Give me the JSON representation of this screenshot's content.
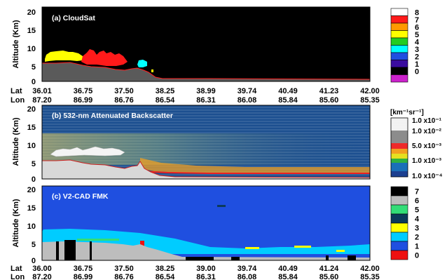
{
  "figure": {
    "panels": [
      {
        "title": "(a) CloudSat",
        "ylabel": "Altitude (Km)",
        "yticks": [
          "20",
          "15",
          "10",
          "5",
          "0"
        ],
        "bottom_axis": {
          "lat_label": "Lat",
          "lon_label": "Lon",
          "lat": [
            "36.01",
            "36.75",
            "37.50",
            "38.25",
            "38.99",
            "39.74",
            "40.49",
            "41.23",
            "42.00"
          ],
          "lon": [
            "87.20",
            "86.99",
            "86.76",
            "86.54",
            "86.31",
            "86.08",
            "85.84",
            "85.60",
            "85.35"
          ]
        },
        "colorbar": {
          "labels": [
            "8",
            "7",
            "6",
            "5",
            "4",
            "3",
            "2",
            "1",
            "0"
          ],
          "colors": [
            "#ffffff",
            "#ff1a1a",
            "#ff9900",
            "#ffff00",
            "#22cc22",
            "#00ffff",
            "#1f4fe0",
            "#3a0c9e",
            "#000000",
            "#cc22cc"
          ]
        }
      },
      {
        "title": "(b) 532-nm Attenuated Backscatter",
        "ylabel": "Altitude (Km)",
        "yticks": [
          "20",
          "15",
          "10",
          "5",
          "0"
        ],
        "colorbar": {
          "unit": "[km⁻¹sr⁻¹]",
          "labels": [
            "1.0 x10⁻¹",
            "1.0 x10⁻²",
            "5.0 x10⁻³",
            "1.0 x10⁻³",
            "1.0 x10⁻⁴"
          ]
        }
      },
      {
        "title": "(c) V2-CAD FMK",
        "ylabel": "Altitude (Km)",
        "yticks": [
          "20",
          "15",
          "10",
          "5",
          "0"
        ],
        "bottom_axis": {
          "lat_label": "Lat",
          "lon_label": "Lon",
          "lat": [
            "36.00",
            "36.75",
            "37.50",
            "38.25",
            "39.00",
            "39.74",
            "40.49",
            "41.24",
            "42.00"
          ],
          "lon": [
            "87.20",
            "86.99",
            "86.76",
            "86.54",
            "86.31",
            "86.08",
            "85.84",
            "85.60",
            "85.35"
          ]
        },
        "colorbar": {
          "labels": [
            "7",
            "6",
            "5",
            "4",
            "3",
            "2",
            "1",
            "0"
          ],
          "colors": [
            "#000000",
            "#bdbdbd",
            "#33dd77",
            "#0c3a5a",
            "#ffff00",
            "#00ccff",
            "#1f4fe0",
            "#ee1111"
          ]
        }
      }
    ]
  }
}
